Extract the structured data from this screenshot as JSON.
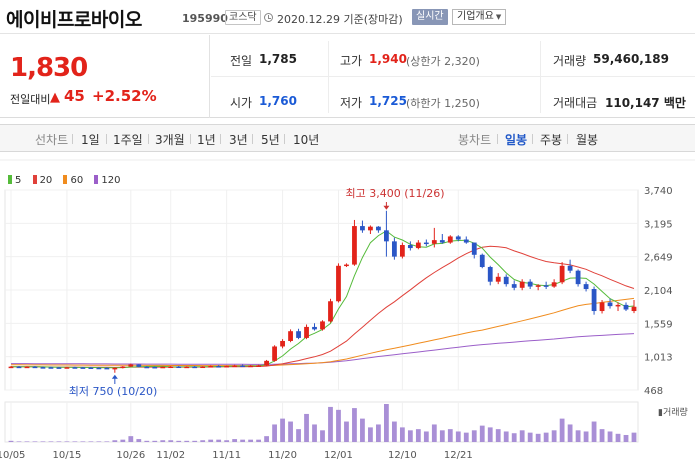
{
  "header": {
    "title": "에이비프로바이오",
    "code": "195990",
    "market": "코스닥",
    "date": "2020.12.29 기준(장마감)",
    "realtime_label": "실시간",
    "company_info": "기업개요"
  },
  "quote": {
    "price": "1,830",
    "change_label": "전일대비",
    "change": "45",
    "change_pct": "+2.52%",
    "prev_close_label": "전일",
    "prev_close": "1,785",
    "high_label": "고가",
    "high": "1,940",
    "upper_limit": "(상한가 2,320)",
    "volume_label": "거래량",
    "volume": "59,460,189",
    "open_label": "시가",
    "open": "1,760",
    "low_label": "저가",
    "low": "1,725",
    "lower_limit": "(하한가 1,250)",
    "amount_label": "거래대금",
    "amount": "110,147 백만"
  },
  "periods": {
    "line_chart": "선차트",
    "items": [
      "1일",
      "1주일",
      "3개월",
      "1년",
      "3년",
      "5년",
      "10년"
    ],
    "candle_chart": "봉차트",
    "candle_items": [
      "일봉",
      "주봉",
      "월봉"
    ]
  },
  "colors": {
    "up": "#e2231a",
    "down": "#2a56c6",
    "ma5": "#55bb3a",
    "ma20": "#e0413a",
    "ma60": "#f08c1e",
    "ma120": "#9b5fc9",
    "volume": "#a98fd6"
  },
  "chart_data": {
    "type": "candlestick",
    "legend": [
      "5",
      "20",
      "60",
      "120"
    ],
    "y_ticks": [
      "3,740",
      "3,195",
      "2,649",
      "2,104",
      "1,559",
      "1,013",
      "468"
    ],
    "y_range": [
      468,
      3740
    ],
    "x_labels": [
      "10/05",
      "10/15",
      "10/26",
      "11/02",
      "11/11",
      "11/20",
      "12/01",
      "12/10",
      "12/21"
    ],
    "annotation_high": "최고 3,400 (11/26)",
    "annotation_low": "최저 750 (10/20)",
    "volume_label": "거래량",
    "candles": [
      [
        840,
        860,
        830,
        850
      ],
      [
        850,
        860,
        840,
        845
      ],
      [
        845,
        855,
        835,
        850
      ],
      [
        850,
        860,
        840,
        842
      ],
      [
        842,
        850,
        830,
        840
      ],
      [
        840,
        850,
        830,
        838
      ],
      [
        838,
        845,
        825,
        835
      ],
      [
        835,
        845,
        825,
        840
      ],
      [
        840,
        850,
        830,
        838
      ],
      [
        838,
        845,
        830,
        836
      ],
      [
        836,
        845,
        826,
        832
      ],
      [
        832,
        840,
        822,
        830
      ],
      [
        830,
        838,
        820,
        828
      ],
      [
        828,
        835,
        750,
        830
      ],
      [
        830,
        860,
        820,
        852
      ],
      [
        852,
        900,
        845,
        885
      ],
      [
        885,
        890,
        840,
        848
      ],
      [
        848,
        858,
        838,
        845
      ],
      [
        845,
        852,
        835,
        842
      ],
      [
        842,
        852,
        832,
        848
      ],
      [
        848,
        860,
        838,
        852
      ],
      [
        852,
        862,
        840,
        846
      ],
      [
        846,
        856,
        836,
        850
      ],
      [
        850,
        860,
        840,
        845
      ],
      [
        845,
        858,
        835,
        852
      ],
      [
        852,
        870,
        842,
        860
      ],
      [
        860,
        875,
        850,
        855
      ],
      [
        855,
        868,
        845,
        862
      ],
      [
        862,
        880,
        852,
        868
      ],
      [
        868,
        885,
        858,
        860
      ],
      [
        860,
        875,
        850,
        866
      ],
      [
        866,
        880,
        856,
        870
      ],
      [
        870,
        960,
        860,
        945
      ],
      [
        945,
        1200,
        930,
        1180
      ],
      [
        1180,
        1300,
        1150,
        1270
      ],
      [
        1270,
        1460,
        1250,
        1430
      ],
      [
        1430,
        1470,
        1300,
        1320
      ],
      [
        1320,
        1540,
        1300,
        1500
      ],
      [
        1500,
        1560,
        1440,
        1460
      ],
      [
        1460,
        1610,
        1440,
        1590
      ],
      [
        1590,
        1960,
        1570,
        1920
      ],
      [
        1920,
        2540,
        1900,
        2500
      ],
      [
        2500,
        2540,
        2480,
        2520
      ],
      [
        2520,
        3250,
        2500,
        3150
      ],
      [
        3150,
        3240,
        3040,
        3080
      ],
      [
        3080,
        3160,
        3020,
        3140
      ],
      [
        3140,
        3150,
        3040,
        3080
      ],
      [
        3080,
        3400,
        2650,
        2900
      ],
      [
        2900,
        2960,
        2600,
        2650
      ],
      [
        2650,
        2880,
        2620,
        2840
      ],
      [
        2840,
        2900,
        2750,
        2790
      ],
      [
        2790,
        2920,
        2770,
        2880
      ],
      [
        2880,
        2930,
        2820,
        2860
      ],
      [
        2860,
        3120,
        2800,
        2920
      ],
      [
        2920,
        3020,
        2860,
        2880
      ],
      [
        2880,
        3000,
        2860,
        2980
      ],
      [
        2980,
        3000,
        2900,
        2930
      ],
      [
        2930,
        2980,
        2860,
        2880
      ],
      [
        2880,
        2880,
        2620,
        2680
      ],
      [
        2680,
        2700,
        2460,
        2480
      ],
      [
        2480,
        2500,
        2180,
        2240
      ],
      [
        2240,
        2380,
        2200,
        2320
      ],
      [
        2320,
        2360,
        2160,
        2200
      ],
      [
        2200,
        2260,
        2100,
        2140
      ],
      [
        2140,
        2280,
        2100,
        2240
      ],
      [
        2240,
        2280,
        2120,
        2160
      ],
      [
        2160,
        2200,
        2100,
        2180
      ],
      [
        2180,
        2240,
        2120,
        2160
      ],
      [
        2160,
        2280,
        2140,
        2230
      ],
      [
        2230,
        2560,
        2200,
        2500
      ],
      [
        2500,
        2600,
        2380,
        2420
      ],
      [
        2420,
        2440,
        2160,
        2200
      ],
      [
        2200,
        2240,
        2080,
        2120
      ],
      [
        2120,
        2160,
        1700,
        1760
      ],
      [
        1760,
        1940,
        1720,
        1900
      ],
      [
        1900,
        1960,
        1800,
        1840
      ],
      [
        1840,
        1900,
        1760,
        1860
      ],
      [
        1860,
        1900,
        1760,
        1785
      ],
      [
        1760,
        1940,
        1725,
        1830
      ]
    ],
    "volume": [
      2,
      1,
      1,
      1,
      1,
      1,
      1,
      1,
      1,
      1,
      1,
      1,
      1,
      3,
      4,
      10,
      5,
      2,
      2,
      3,
      3,
      2,
      2,
      2,
      3,
      4,
      4,
      3,
      5,
      4,
      4,
      4,
      10,
      30,
      40,
      35,
      22,
      48,
      30,
      20,
      60,
      55,
      35,
      58,
      40,
      25,
      30,
      65,
      35,
      25,
      20,
      22,
      18,
      30,
      20,
      22,
      18,
      16,
      20,
      28,
      25,
      22,
      18,
      15,
      20,
      16,
      14,
      16,
      20,
      40,
      30,
      20,
      18,
      35,
      22,
      18,
      14,
      12,
      16
    ]
  }
}
